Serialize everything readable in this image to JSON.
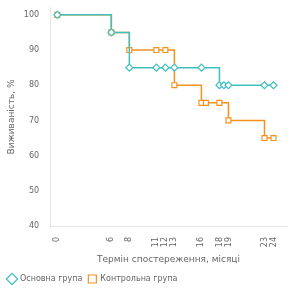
{
  "chart_data": {
    "type": "line",
    "xlabel": "Термін спостереження, місяці",
    "ylabel": "Виживаність, %",
    "xlim": [
      -0.8,
      25.5
    ],
    "xticks": [
      0,
      6,
      8,
      11,
      12,
      13,
      16,
      18,
      19,
      23,
      24
    ],
    "ylim": [
      40,
      102
    ],
    "yticks": [
      40,
      50,
      60,
      70,
      80,
      90,
      100
    ],
    "grid": false,
    "legend": "lower left",
    "series": [
      {
        "name": "Основна група",
        "color": "#40bfbf",
        "marker": "diamond",
        "line_style": "steps",
        "x": [
          0,
          6,
          8,
          11,
          12,
          13,
          16,
          18,
          18.5,
          19,
          23,
          24
        ],
        "values": [
          100,
          95,
          85,
          85,
          85,
          85,
          85,
          80,
          80,
          80,
          80,
          80
        ]
      },
      {
        "name": "Контрольна група",
        "color": "#f5921e",
        "marker": "square",
        "line_style": "steps",
        "x": [
          0,
          6,
          8,
          11,
          12,
          13,
          16,
          16.5,
          18,
          19,
          23,
          24
        ],
        "values": [
          100,
          95,
          90,
          90,
          90,
          80,
          75,
          75,
          75,
          70,
          65,
          65
        ]
      }
    ]
  }
}
